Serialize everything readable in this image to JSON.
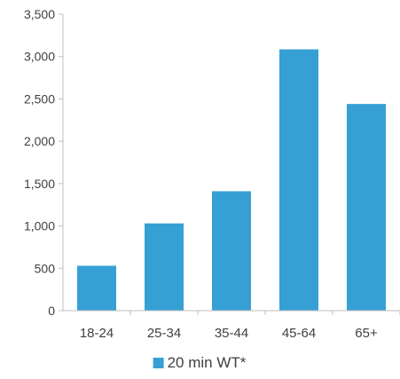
{
  "chart_data": {
    "type": "bar",
    "title": "",
    "xlabel": "",
    "ylabel": "",
    "categories": [
      "18-24",
      "25-34",
      "35-44",
      "45-64",
      "65+"
    ],
    "series": [
      {
        "name": "20 min WT*",
        "values": [
          530,
          1030,
          1410,
          3085,
          2440
        ],
        "color": "#36a0d4"
      }
    ],
    "ylim": [
      0,
      3500
    ],
    "yticks": [
      0,
      500,
      1000,
      1500,
      2000,
      2500,
      3000,
      3500
    ],
    "ytick_labels": [
      "0",
      "500",
      "1,000",
      "1,500",
      "2,000",
      "2,500",
      "3,000",
      "3,500"
    ],
    "grid": false,
    "legend_position": "bottom",
    "axis_color": "#bfbfbf"
  }
}
